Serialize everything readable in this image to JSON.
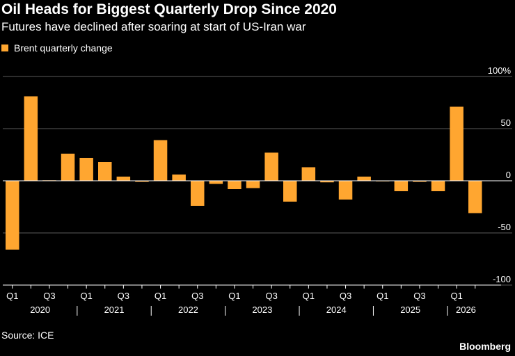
{
  "header": {
    "title": "Oil Heads for Biggest Quarterly Drop Since 2020",
    "subtitle": "Futures have declined after soaring at start of US-Iran war"
  },
  "footer": {
    "source": "Source: ICE",
    "brand": "Bloomberg"
  },
  "colors": {
    "bar": "#ffa630",
    "grid": "#5a5a5a",
    "axis": "#ffffff"
  },
  "chart_data": {
    "type": "bar",
    "title": "Oil Heads for Biggest Quarterly Drop Since 2020",
    "subtitle": "Futures have declined after soaring at start of US-Iran war",
    "xlabel": "",
    "ylabel": "",
    "ylim": [
      -100,
      100
    ],
    "y_ticks": [
      100,
      50,
      0,
      -50,
      -100
    ],
    "y_tick_labels": [
      "100%",
      "50",
      "0",
      "-50",
      "-100"
    ],
    "y_axis_side": "right",
    "grid": true,
    "legend": "top-left",
    "categories": [
      "2020 Q1",
      "2020 Q2",
      "2020 Q3",
      "2020 Q4",
      "2021 Q1",
      "2021 Q2",
      "2021 Q3",
      "2021 Q4",
      "2022 Q1",
      "2022 Q2",
      "2022 Q3",
      "2022 Q4",
      "2023 Q1",
      "2023 Q2",
      "2023 Q3",
      "2023 Q4",
      "2024 Q1",
      "2024 Q2",
      "2024 Q3",
      "2024 Q4",
      "2025 Q1",
      "2025 Q2",
      "2025 Q3",
      "2025 Q4",
      "2026 Q1",
      "2026 Q2"
    ],
    "series": [
      {
        "name": "Brent quarterly change",
        "values": [
          -66,
          81,
          0.5,
          26,
          22,
          18,
          4,
          -1,
          39,
          6,
          -24,
          -3,
          -8,
          -7,
          27,
          -20,
          13,
          -1.5,
          -18,
          4,
          -0.5,
          -10,
          -1,
          -10,
          71,
          -31
        ]
      }
    ],
    "x_quarter_labels": [
      {
        "index": 0,
        "label": "Q1"
      },
      {
        "index": 2,
        "label": "Q3"
      },
      {
        "index": 4,
        "label": "Q1"
      },
      {
        "index": 6,
        "label": "Q3"
      },
      {
        "index": 8,
        "label": "Q1"
      },
      {
        "index": 10,
        "label": "Q3"
      },
      {
        "index": 12,
        "label": "Q1"
      },
      {
        "index": 14,
        "label": "Q3"
      },
      {
        "index": 16,
        "label": "Q1"
      },
      {
        "index": 18,
        "label": "Q3"
      },
      {
        "index": 20,
        "label": "Q1"
      },
      {
        "index": 22,
        "label": "Q3"
      },
      {
        "index": 24,
        "label": "Q1"
      }
    ],
    "x_year_labels": [
      "2020",
      "2021",
      "2022",
      "2023",
      "2024",
      "2025",
      "2026"
    ]
  }
}
